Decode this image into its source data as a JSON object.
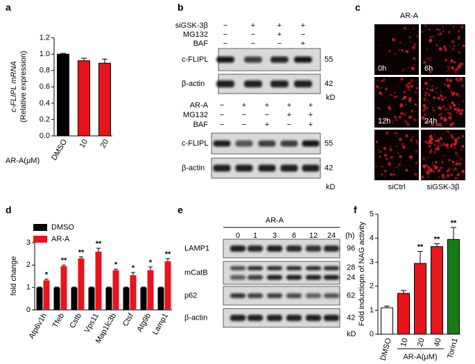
{
  "chart_data": [
    {
      "type": "bar",
      "panel": "a",
      "y_label": [
        "c-FLIPL mRNA",
        "(Relative expression)"
      ],
      "x_label": "AR-A(μM)",
      "categories": [
        "DMSO",
        "10",
        "20"
      ],
      "values": [
        1.0,
        0.92,
        0.89
      ],
      "errors": [
        0.01,
        0.03,
        0.05
      ],
      "colors": [
        "#000000",
        "#e8141b",
        "#e8141b"
      ],
      "ylim": [
        0,
        1.2
      ],
      "yticks": [
        {
          "value": 0,
          "label": "0.0"
        },
        {
          "value": 0.2,
          "label": "0.2"
        },
        {
          "value": 0.4,
          "label": "0.4"
        },
        {
          "value": 0.6,
          "label": "0.6"
        },
        {
          "value": 0.8,
          "label": "0.8"
        },
        {
          "value": 1,
          "label": "1.0"
        },
        {
          "value": 1.2,
          "label": "1.2"
        }
      ]
    },
    {
      "type": "grouped_bar",
      "panel": "d",
      "y_label": "fold change",
      "categories": [
        "Atp6v1h",
        "Tfeb",
        "Cstb",
        "Vps11",
        "Map1lc3b",
        "Ctsf",
        "Atg9b",
        "Lamp1"
      ],
      "series": [
        {
          "name": "DMSO",
          "color": "#000000",
          "values": [
            1,
            1,
            1,
            1,
            1,
            1,
            1,
            1
          ],
          "errors": [
            0.02,
            0.02,
            0.02,
            0.02,
            0.02,
            0.02,
            0.02,
            0.02
          ]
        },
        {
          "name": "AR-A",
          "color": "#e8141b",
          "values": [
            1.32,
            1.95,
            2.3,
            2.6,
            1.77,
            1.55,
            1.77,
            2.17
          ],
          "errors": [
            0.05,
            0.05,
            0.07,
            0.15,
            0.05,
            0.12,
            0.15,
            0.12
          ],
          "significance": [
            "*",
            "**",
            "**",
            "**",
            "*",
            "*",
            "*",
            "**"
          ]
        }
      ],
      "ylim": [
        0,
        3
      ],
      "yticks": [
        0,
        1,
        2,
        3
      ]
    },
    {
      "type": "bar",
      "panel": "f",
      "y_label": "Fold inductiopn of NAG activity",
      "x_label": "AR-A(μM)",
      "categories": [
        "DMSO",
        "10",
        "20",
        "40",
        "Torin1"
      ],
      "values": [
        1.1,
        1.7,
        2.95,
        3.65,
        3.95
      ],
      "errors": [
        0.07,
        0.12,
        0.5,
        0.12,
        0.5
      ],
      "colors": [
        "#ffffff",
        "#e8141b",
        "#e8141b",
        "#e8141b",
        "#1a7a1a"
      ],
      "significance": [
        null,
        null,
        "**",
        "**",
        "**"
      ],
      "ylim": [
        0,
        5
      ],
      "yticks": [
        0,
        1,
        2,
        3,
        4,
        5
      ]
    }
  ],
  "panel_b": {
    "label": "b",
    "top": {
      "conditions": [
        {
          "name": "siGSK-3β",
          "signs": [
            "−",
            "+",
            "+",
            "+"
          ]
        },
        {
          "name": "MG132",
          "signs": [
            "−",
            "−",
            "+",
            "−"
          ]
        },
        {
          "name": "BAF",
          "signs": [
            "−",
            "−",
            "−",
            "+"
          ]
        }
      ],
      "blots": [
        {
          "name": "c-FLIPL",
          "size": "55"
        },
        {
          "name": "β-actin",
          "size": "42"
        }
      ],
      "unit": "kD"
    },
    "bottom": {
      "conditions": [
        {
          "name": "AR-A",
          "signs": [
            "−",
            "+",
            "+",
            "+",
            "+"
          ]
        },
        {
          "name": "MG132",
          "signs": [
            "−",
            "−",
            "−",
            "+",
            "+"
          ]
        },
        {
          "name": "BAF",
          "signs": [
            "−",
            "−",
            "+",
            "−",
            "+"
          ]
        }
      ],
      "blots": [
        {
          "name": "c-FLIPL",
          "size": "55"
        },
        {
          "name": "β-actin",
          "size": "42"
        }
      ],
      "unit": "kD"
    }
  },
  "panel_c": {
    "label": "c",
    "title": "AR-A",
    "images": [
      "0h",
      "6h",
      "12h",
      "24h",
      "siCtrl",
      "siGSK-3β"
    ]
  },
  "panel_e": {
    "label": "e",
    "title": "AR-A",
    "times": [
      "0",
      "1",
      "3",
      "6",
      "12",
      "24"
    ],
    "time_unit": "(h)",
    "blots": [
      {
        "name": "LAMP1",
        "sizes": [
          "96"
        ]
      },
      {
        "name": "mCatB",
        "sizes": [
          "28",
          "24"
        ]
      },
      {
        "name": "p62",
        "sizes": [
          "62"
        ]
      },
      {
        "name": "β-actin",
        "sizes": [
          "42"
        ]
      }
    ],
    "unit": "kD"
  }
}
